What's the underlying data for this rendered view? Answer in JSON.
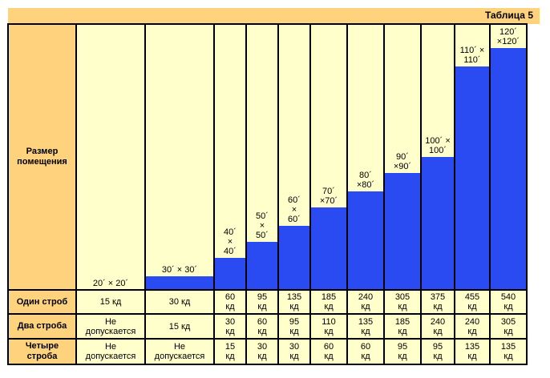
{
  "title": "Таблица 5",
  "row_headers": {
    "room_size": "Размер\nпомещения",
    "one": "Один строб",
    "two": "Два строба",
    "four": "Четыре\nстроба"
  },
  "columns": [
    {
      "size": "20´ × 20´",
      "fill_fraction": 0.0,
      "one": "15 кд",
      "two": "Не\nдопускается",
      "four": "Не\nдопускается"
    },
    {
      "size": "30´ × 30´",
      "fill_fraction": 0.05,
      "one": "30 кд",
      "two": "15 кд",
      "four": "Не\nдопускается"
    },
    {
      "size": "40´\n×\n40´",
      "fill_fraction": 0.12,
      "one": "60\nкд",
      "two": "30\nкд",
      "four": "15\nкд"
    },
    {
      "size": "50´\n×\n50´",
      "fill_fraction": 0.18,
      "one": "95\nкд",
      "two": "60\nкд",
      "four": "30\nкд"
    },
    {
      "size": "60´\n×\n60´",
      "fill_fraction": 0.24,
      "one": "135\nкд",
      "two": "95\nкд",
      "four": "30\nкд"
    },
    {
      "size": "70´\n×70´",
      "fill_fraction": 0.31,
      "one": "185\nкд",
      "two": "110\nкд",
      "four": "60\nкд"
    },
    {
      "size": "80´\n×80´",
      "fill_fraction": 0.37,
      "one": "240\nкд",
      "two": "135\nкд",
      "four": "60\nкд"
    },
    {
      "size": "90´\n×90´",
      "fill_fraction": 0.44,
      "one": "305\nкд",
      "two": "185\nкд",
      "four": "95\nкд"
    },
    {
      "size": "100´ ×\n100´",
      "fill_fraction": 0.5,
      "one": "375\nкд",
      "two": "240\nкд",
      "four": "95\nкд"
    },
    {
      "size": "110´ ×\n110´",
      "fill_fraction": 0.84,
      "one": "455\nкд",
      "two": "240\nкд",
      "four": "135\nкд"
    },
    {
      "size": "120´\n×120´",
      "fill_fraction": 0.91,
      "one": "540\nкд",
      "two": "305\nкд",
      "four": "135\nкд"
    }
  ],
  "colors": {
    "header": "#ffd27d",
    "body": "#ffffcc",
    "bar": "#2b4bf2",
    "border": "#000000"
  }
}
